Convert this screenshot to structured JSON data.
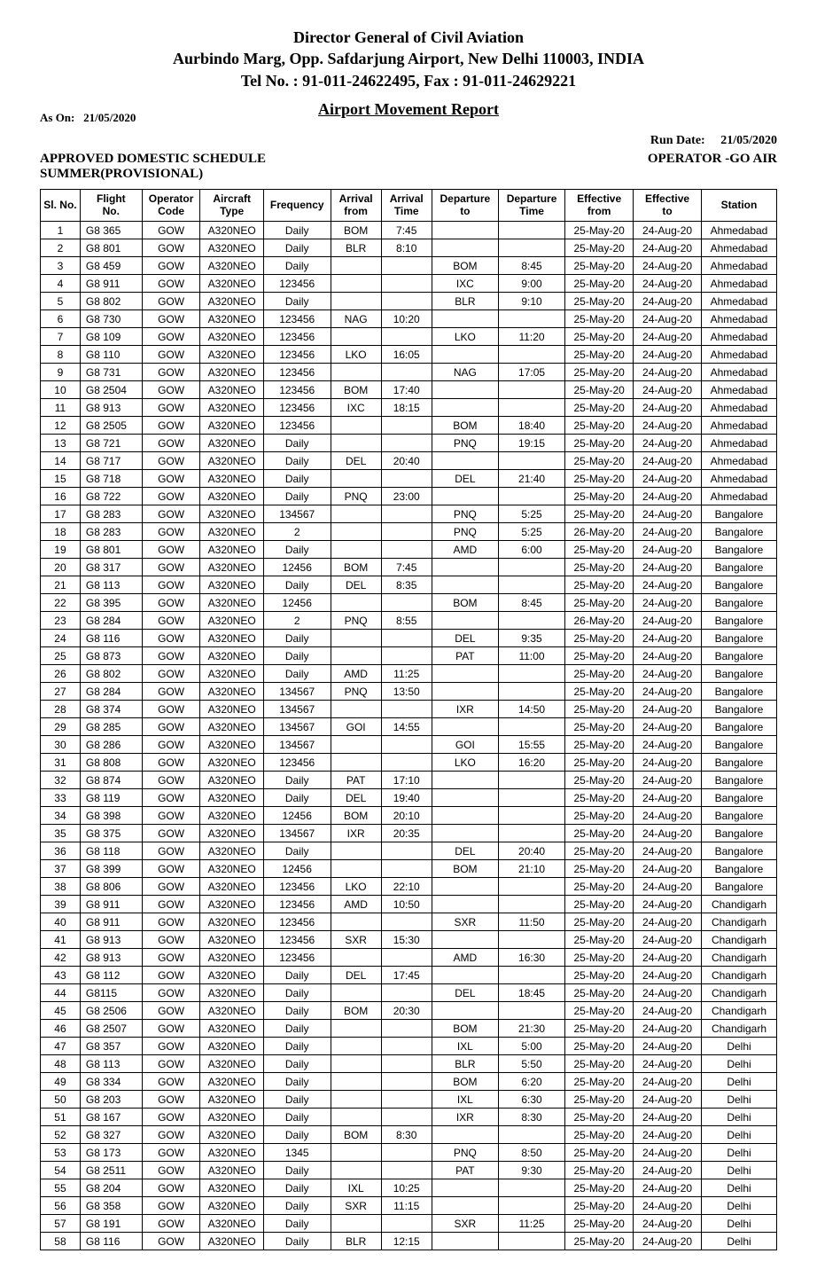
{
  "header": {
    "line1": "Director General of Civil Aviation",
    "line2": "Aurbindo Marg, Opp. Safdarjung Airport, New Delhi 110003, INDIA",
    "line3": "Tel No. :  91-011-24622495, Fax : 91-011-24629221"
  },
  "report_title": "Airport Movement Report",
  "as_on_label": "As On:",
  "as_on_value": "21/05/2020",
  "run_date_label": "Run Date:",
  "run_date_value": "21/05/2020",
  "schedule_line": "APPROVED DOMESTIC SCHEDULE",
  "operator_line": "OPERATOR -GO AIR",
  "season_line": "SUMMER(PROVISIONAL)",
  "columns": [
    "Sl. No.",
    "Flight\nNo.",
    "Operator\nCode",
    "Aircraft\nType",
    "Frequency",
    "Arrival\nfrom",
    "Arrival\nTime",
    "Departure\nto",
    "Departure\nTime",
    "Effective\nfrom",
    "Effective\nto",
    "Station"
  ],
  "col_classes": [
    "sl",
    "fno",
    "opc",
    "act",
    "freq",
    "af",
    "at",
    "dto",
    "dt",
    "ef",
    "et",
    "stn"
  ],
  "rows": [
    [
      "1",
      "G8 365",
      "GOW",
      "A320NEO",
      "Daily",
      "BOM",
      "7:45",
      "",
      "",
      "25-May-20",
      "24-Aug-20",
      "Ahmedabad"
    ],
    [
      "2",
      "G8 801",
      "GOW",
      "A320NEO",
      "Daily",
      "BLR",
      "8:10",
      "",
      "",
      "25-May-20",
      "24-Aug-20",
      "Ahmedabad"
    ],
    [
      "3",
      "G8 459",
      "GOW",
      "A320NEO",
      "Daily",
      "",
      "",
      "BOM",
      "8:45",
      "25-May-20",
      "24-Aug-20",
      "Ahmedabad"
    ],
    [
      "4",
      "G8 911",
      "GOW",
      "A320NEO",
      "123456",
      "",
      "",
      "IXC",
      "9:00",
      "25-May-20",
      "24-Aug-20",
      "Ahmedabad"
    ],
    [
      "5",
      "G8 802",
      "GOW",
      "A320NEO",
      "Daily",
      "",
      "",
      "BLR",
      "9:10",
      "25-May-20",
      "24-Aug-20",
      "Ahmedabad"
    ],
    [
      "6",
      "G8 730",
      "GOW",
      "A320NEO",
      "123456",
      "NAG",
      "10:20",
      "",
      "",
      "25-May-20",
      "24-Aug-20",
      "Ahmedabad"
    ],
    [
      "7",
      "G8 109",
      "GOW",
      "A320NEO",
      "123456",
      "",
      "",
      "LKO",
      "11:20",
      "25-May-20",
      "24-Aug-20",
      "Ahmedabad"
    ],
    [
      "8",
      "G8 110",
      "GOW",
      "A320NEO",
      "123456",
      "LKO",
      "16:05",
      "",
      "",
      "25-May-20",
      "24-Aug-20",
      "Ahmedabad"
    ],
    [
      "9",
      "G8 731",
      "GOW",
      "A320NEO",
      "123456",
      "",
      "",
      "NAG",
      "17:05",
      "25-May-20",
      "24-Aug-20",
      "Ahmedabad"
    ],
    [
      "10",
      "G8 2504",
      "GOW",
      "A320NEO",
      "123456",
      "BOM",
      "17:40",
      "",
      "",
      "25-May-20",
      "24-Aug-20",
      "Ahmedabad"
    ],
    [
      "11",
      "G8 913",
      "GOW",
      "A320NEO",
      "123456",
      "IXC",
      "18:15",
      "",
      "",
      "25-May-20",
      "24-Aug-20",
      "Ahmedabad"
    ],
    [
      "12",
      "G8 2505",
      "GOW",
      "A320NEO",
      "123456",
      "",
      "",
      "BOM",
      "18:40",
      "25-May-20",
      "24-Aug-20",
      "Ahmedabad"
    ],
    [
      "13",
      "G8 721",
      "GOW",
      "A320NEO",
      "Daily",
      "",
      "",
      "PNQ",
      "19:15",
      "25-May-20",
      "24-Aug-20",
      "Ahmedabad"
    ],
    [
      "14",
      "G8 717",
      "GOW",
      "A320NEO",
      "Daily",
      "DEL",
      "20:40",
      "",
      "",
      "25-May-20",
      "24-Aug-20",
      "Ahmedabad"
    ],
    [
      "15",
      "G8 718",
      "GOW",
      "A320NEO",
      "Daily",
      "",
      "",
      "DEL",
      "21:40",
      "25-May-20",
      "24-Aug-20",
      "Ahmedabad"
    ],
    [
      "16",
      "G8 722",
      "GOW",
      "A320NEO",
      "Daily",
      "PNQ",
      "23:00",
      "",
      "",
      "25-May-20",
      "24-Aug-20",
      "Ahmedabad"
    ],
    [
      "17",
      "G8 283",
      "GOW",
      "A320NEO",
      "134567",
      "",
      "",
      "PNQ",
      "5:25",
      "25-May-20",
      "24-Aug-20",
      "Bangalore"
    ],
    [
      "18",
      "G8 283",
      "GOW",
      "A320NEO",
      "2",
      "",
      "",
      "PNQ",
      "5:25",
      "26-May-20",
      "24-Aug-20",
      "Bangalore"
    ],
    [
      "19",
      "G8 801",
      "GOW",
      "A320NEO",
      "Daily",
      "",
      "",
      "AMD",
      "6:00",
      "25-May-20",
      "24-Aug-20",
      "Bangalore"
    ],
    [
      "20",
      "G8 317",
      "GOW",
      "A320NEO",
      "12456",
      "BOM",
      "7:45",
      "",
      "",
      "25-May-20",
      "24-Aug-20",
      "Bangalore"
    ],
    [
      "21",
      "G8 113",
      "GOW",
      "A320NEO",
      "Daily",
      "DEL",
      "8:35",
      "",
      "",
      "25-May-20",
      "24-Aug-20",
      "Bangalore"
    ],
    [
      "22",
      "G8 395",
      "GOW",
      "A320NEO",
      "12456",
      "",
      "",
      "BOM",
      "8:45",
      "25-May-20",
      "24-Aug-20",
      "Bangalore"
    ],
    [
      "23",
      "G8 284",
      "GOW",
      "A320NEO",
      "2",
      "PNQ",
      "8:55",
      "",
      "",
      "26-May-20",
      "24-Aug-20",
      "Bangalore"
    ],
    [
      "24",
      "G8 116",
      "GOW",
      "A320NEO",
      "Daily",
      "",
      "",
      "DEL",
      "9:35",
      "25-May-20",
      "24-Aug-20",
      "Bangalore"
    ],
    [
      "25",
      "G8 873",
      "GOW",
      "A320NEO",
      "Daily",
      "",
      "",
      "PAT",
      "11:00",
      "25-May-20",
      "24-Aug-20",
      "Bangalore"
    ],
    [
      "26",
      "G8 802",
      "GOW",
      "A320NEO",
      "Daily",
      "AMD",
      "11:25",
      "",
      "",
      "25-May-20",
      "24-Aug-20",
      "Bangalore"
    ],
    [
      "27",
      "G8 284",
      "GOW",
      "A320NEO",
      "134567",
      "PNQ",
      "13:50",
      "",
      "",
      "25-May-20",
      "24-Aug-20",
      "Bangalore"
    ],
    [
      "28",
      "G8 374",
      "GOW",
      "A320NEO",
      "134567",
      "",
      "",
      "IXR",
      "14:50",
      "25-May-20",
      "24-Aug-20",
      "Bangalore"
    ],
    [
      "29",
      "G8 285",
      "GOW",
      "A320NEO",
      "134567",
      "GOI",
      "14:55",
      "",
      "",
      "25-May-20",
      "24-Aug-20",
      "Bangalore"
    ],
    [
      "30",
      "G8 286",
      "GOW",
      "A320NEO",
      "134567",
      "",
      "",
      "GOI",
      "15:55",
      "25-May-20",
      "24-Aug-20",
      "Bangalore"
    ],
    [
      "31",
      "G8 808",
      "GOW",
      "A320NEO",
      "123456",
      "",
      "",
      "LKO",
      "16:20",
      "25-May-20",
      "24-Aug-20",
      "Bangalore"
    ],
    [
      "32",
      "G8 874",
      "GOW",
      "A320NEO",
      "Daily",
      "PAT",
      "17:10",
      "",
      "",
      "25-May-20",
      "24-Aug-20",
      "Bangalore"
    ],
    [
      "33",
      "G8 119",
      "GOW",
      "A320NEO",
      "Daily",
      "DEL",
      "19:40",
      "",
      "",
      "25-May-20",
      "24-Aug-20",
      "Bangalore"
    ],
    [
      "34",
      "G8 398",
      "GOW",
      "A320NEO",
      "12456",
      "BOM",
      "20:10",
      "",
      "",
      "25-May-20",
      "24-Aug-20",
      "Bangalore"
    ],
    [
      "35",
      "G8 375",
      "GOW",
      "A320NEO",
      "134567",
      "IXR",
      "20:35",
      "",
      "",
      "25-May-20",
      "24-Aug-20",
      "Bangalore"
    ],
    [
      "36",
      "G8 118",
      "GOW",
      "A320NEO",
      "Daily",
      "",
      "",
      "DEL",
      "20:40",
      "25-May-20",
      "24-Aug-20",
      "Bangalore"
    ],
    [
      "37",
      "G8 399",
      "GOW",
      "A320NEO",
      "12456",
      "",
      "",
      "BOM",
      "21:10",
      "25-May-20",
      "24-Aug-20",
      "Bangalore"
    ],
    [
      "38",
      "G8 806",
      "GOW",
      "A320NEO",
      "123456",
      "LKO",
      "22:10",
      "",
      "",
      "25-May-20",
      "24-Aug-20",
      "Bangalore"
    ],
    [
      "39",
      "G8 911",
      "GOW",
      "A320NEO",
      "123456",
      "AMD",
      "10:50",
      "",
      "",
      "25-May-20",
      "24-Aug-20",
      "Chandigarh"
    ],
    [
      "40",
      "G8 911",
      "GOW",
      "A320NEO",
      "123456",
      "",
      "",
      "SXR",
      "11:50",
      "25-May-20",
      "24-Aug-20",
      "Chandigarh"
    ],
    [
      "41",
      "G8 913",
      "GOW",
      "A320NEO",
      "123456",
      "SXR",
      "15:30",
      "",
      "",
      "25-May-20",
      "24-Aug-20",
      "Chandigarh"
    ],
    [
      "42",
      "G8 913",
      "GOW",
      "A320NEO",
      "123456",
      "",
      "",
      "AMD",
      "16:30",
      "25-May-20",
      "24-Aug-20",
      "Chandigarh"
    ],
    [
      "43",
      "G8 112",
      "GOW",
      "A320NEO",
      "Daily",
      "DEL",
      "17:45",
      "",
      "",
      "25-May-20",
      "24-Aug-20",
      "Chandigarh"
    ],
    [
      "44",
      "G8115",
      "GOW",
      "A320NEO",
      "Daily",
      "",
      "",
      "DEL",
      "18:45",
      "25-May-20",
      "24-Aug-20",
      "Chandigarh"
    ],
    [
      "45",
      "G8 2506",
      "GOW",
      "A320NEO",
      "Daily",
      "BOM",
      "20:30",
      "",
      "",
      "25-May-20",
      "24-Aug-20",
      "Chandigarh"
    ],
    [
      "46",
      "G8 2507",
      "GOW",
      "A320NEO",
      "Daily",
      "",
      "",
      "BOM",
      "21:30",
      "25-May-20",
      "24-Aug-20",
      "Chandigarh"
    ],
    [
      "47",
      "G8 357",
      "GOW",
      "A320NEO",
      "Daily",
      "",
      "",
      "IXL",
      "5:00",
      "25-May-20",
      "24-Aug-20",
      "Delhi"
    ],
    [
      "48",
      "G8 113",
      "GOW",
      "A320NEO",
      "Daily",
      "",
      "",
      "BLR",
      "5:50",
      "25-May-20",
      "24-Aug-20",
      "Delhi"
    ],
    [
      "49",
      "G8 334",
      "GOW",
      "A320NEO",
      "Daily",
      "",
      "",
      "BOM",
      "6:20",
      "25-May-20",
      "24-Aug-20",
      "Delhi"
    ],
    [
      "50",
      "G8 203",
      "GOW",
      "A320NEO",
      "Daily",
      "",
      "",
      "IXL",
      "6:30",
      "25-May-20",
      "24-Aug-20",
      "Delhi"
    ],
    [
      "51",
      "G8 167",
      "GOW",
      "A320NEO",
      "Daily",
      "",
      "",
      "IXR",
      "8:30",
      "25-May-20",
      "24-Aug-20",
      "Delhi"
    ],
    [
      "52",
      "G8 327",
      "GOW",
      "A320NEO",
      "Daily",
      "BOM",
      "8:30",
      "",
      "",
      "25-May-20",
      "24-Aug-20",
      "Delhi"
    ],
    [
      "53",
      "G8 173",
      "GOW",
      "A320NEO",
      "1345",
      "",
      "",
      "PNQ",
      "8:50",
      "25-May-20",
      "24-Aug-20",
      "Delhi"
    ],
    [
      "54",
      "G8 2511",
      "GOW",
      "A320NEO",
      "Daily",
      "",
      "",
      "PAT",
      "9:30",
      "25-May-20",
      "24-Aug-20",
      "Delhi"
    ],
    [
      "55",
      "G8 204",
      "GOW",
      "A320NEO",
      "Daily",
      "IXL",
      "10:25",
      "",
      "",
      "25-May-20",
      "24-Aug-20",
      "Delhi"
    ],
    [
      "56",
      "G8 358",
      "GOW",
      "A320NEO",
      "Daily",
      "SXR",
      "11:15",
      "",
      "",
      "25-May-20",
      "24-Aug-20",
      "Delhi"
    ],
    [
      "57",
      "G8 191",
      "GOW",
      "A320NEO",
      "Daily",
      "",
      "",
      "SXR",
      "11:25",
      "25-May-20",
      "24-Aug-20",
      "Delhi"
    ],
    [
      "58",
      "G8 116",
      "GOW",
      "A320NEO",
      "Daily",
      "BLR",
      "12:15",
      "",
      "",
      "25-May-20",
      "24-Aug-20",
      "Delhi"
    ]
  ]
}
